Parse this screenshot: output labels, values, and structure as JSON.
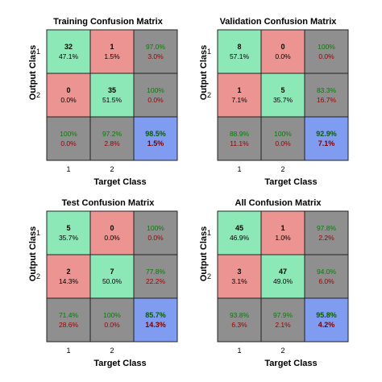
{
  "colors": {
    "correct": "#8de8b8",
    "incorrect": "#ec9491",
    "summary": "#8f8f8f",
    "overall": "#7f9cf0",
    "summary_good_text": "#0a7a0a",
    "summary_bad_text": "#9b0000"
  },
  "chart_data": [
    {
      "type": "table",
      "title": "Training Confusion Matrix",
      "xlabel": "Target Class",
      "ylabel": "Output Class",
      "class_labels": [
        "1",
        "2"
      ],
      "counts": [
        [
          32,
          1
        ],
        [
          0,
          35
        ]
      ],
      "cell_percents": [
        [
          "47.1%",
          "1.5%"
        ],
        [
          "0.0%",
          "51.5%"
        ]
      ],
      "row_summary": [
        [
          "97.0%",
          "3.0%"
        ],
        [
          "100%",
          "0.0%"
        ]
      ],
      "col_summary": [
        [
          "100%",
          "0.0%"
        ],
        [
          "97.2%",
          "2.8%"
        ]
      ],
      "overall": [
        "98.5%",
        "1.5%"
      ]
    },
    {
      "type": "table",
      "title": "Validation Confusion Matrix",
      "xlabel": "Target Class",
      "ylabel": "Output Class",
      "class_labels": [
        "1",
        "2"
      ],
      "counts": [
        [
          8,
          0
        ],
        [
          1,
          5
        ]
      ],
      "cell_percents": [
        [
          "57.1%",
          "0.0%"
        ],
        [
          "7.1%",
          "35.7%"
        ]
      ],
      "row_summary": [
        [
          "100%",
          "0.0%"
        ],
        [
          "83.3%",
          "16.7%"
        ]
      ],
      "col_summary": [
        [
          "88.9%",
          "11.1%"
        ],
        [
          "100%",
          "0.0%"
        ]
      ],
      "overall": [
        "92.9%",
        "7.1%"
      ]
    },
    {
      "type": "table",
      "title": "Test Confusion Matrix",
      "xlabel": "Target Class",
      "ylabel": "Output Class",
      "class_labels": [
        "1",
        "2"
      ],
      "counts": [
        [
          5,
          0
        ],
        [
          2,
          7
        ]
      ],
      "cell_percents": [
        [
          "35.7%",
          "0.0%"
        ],
        [
          "14.3%",
          "50.0%"
        ]
      ],
      "row_summary": [
        [
          "100%",
          "0.0%"
        ],
        [
          "77.8%",
          "22.2%"
        ]
      ],
      "col_summary": [
        [
          "71.4%",
          "28.6%"
        ],
        [
          "100%",
          "0.0%"
        ]
      ],
      "overall": [
        "85.7%",
        "14.3%"
      ]
    },
    {
      "type": "table",
      "title": "All Confusion Matrix",
      "xlabel": "Target Class",
      "ylabel": "Output Class",
      "class_labels": [
        "1",
        "2"
      ],
      "counts": [
        [
          45,
          1
        ],
        [
          3,
          47
        ]
      ],
      "cell_percents": [
        [
          "46.9%",
          "1.0%"
        ],
        [
          "3.1%",
          "49.0%"
        ]
      ],
      "row_summary": [
        [
          "97.8%",
          "2.2%"
        ],
        [
          "94.0%",
          "6.0%"
        ]
      ],
      "col_summary": [
        [
          "93.8%",
          "6.3%"
        ],
        [
          "97.9%",
          "2.1%"
        ]
      ],
      "overall": [
        "95.8%",
        "4.2%"
      ]
    }
  ]
}
